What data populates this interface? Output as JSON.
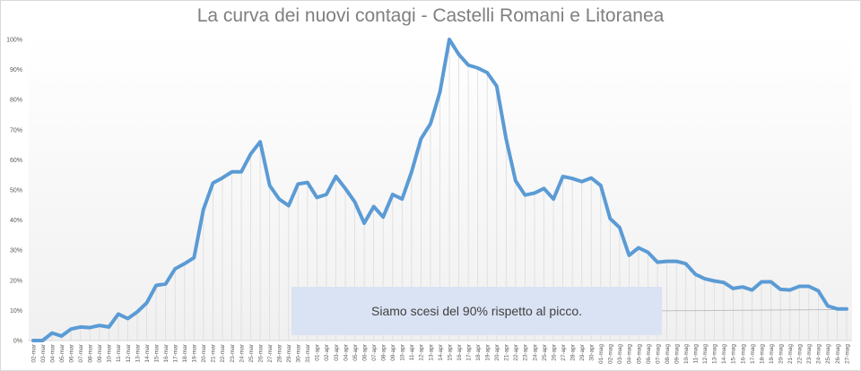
{
  "chart_data": {
    "type": "line",
    "title": "La curva dei nuovi contagi - Castelli Romani e Litoranea",
    "xlabel": "",
    "ylabel": "",
    "ylim": [
      0,
      100
    ],
    "yticks": [
      "0%",
      "10%",
      "20%",
      "30%",
      "40%",
      "50%",
      "60%",
      "70%",
      "80%",
      "90%",
      "100%"
    ],
    "grid": "vertical lines per category",
    "legend": "none",
    "line_color": "#5b9bd5",
    "categories": [
      "02-mar",
      "03-mar",
      "04-mar",
      "05-mar",
      "06-mar",
      "07-mar",
      "08-mar",
      "09-mar",
      "10-mar",
      "11-mar",
      "12-mar",
      "13-mar",
      "14-mar",
      "15-mar",
      "16-mar",
      "17-mar",
      "18-mar",
      "19-mar",
      "20-mar",
      "21-mar",
      "22-mar",
      "23-mar",
      "24-mar",
      "25-mar",
      "26-mar",
      "27-mar",
      "28-mar",
      "29-mar",
      "30-mar",
      "31-mar",
      "01-apr",
      "02-apr",
      "03-apr",
      "04-apr",
      "05-apr",
      "06-apr",
      "07-apr",
      "08-apr",
      "09-apr",
      "10-apr",
      "11-apr",
      "12-apr",
      "13-apr",
      "14-apr",
      "15-apr",
      "16-apr",
      "17-apr",
      "18-apr",
      "19-apr",
      "20-apr",
      "21-apr",
      "22-apr",
      "23-apr",
      "24-apr",
      "25-apr",
      "26-apr",
      "27-apr",
      "28-apr",
      "29-apr",
      "30-apr",
      "01-mag",
      "02-mag",
      "03-mag",
      "04-mag",
      "05-mag",
      "06-mag",
      "07-mag",
      "08-mag",
      "09-mag",
      "10-mag",
      "11-mag",
      "12-mag",
      "13-mag",
      "14-mag",
      "15-mag",
      "16-mag",
      "17-mag",
      "18-mag",
      "19-mag",
      "20-mag",
      "21-mag",
      "22-mag",
      "23-mag",
      "24-mag",
      "25-mag",
      "26-mag",
      "27-mag"
    ],
    "values": [
      0,
      0,
      2.5,
      1.5,
      3.8,
      4.5,
      4.3,
      5,
      4.5,
      8.8,
      7.3,
      9.5,
      12.5,
      18.3,
      18.8,
      23.8,
      25.5,
      27.5,
      43.5,
      52.3,
      54,
      56,
      56,
      62,
      66,
      51.5,
      47,
      44.8,
      52,
      52.5,
      47.5,
      48.5,
      54.5,
      50.5,
      46,
      39,
      44.5,
      41,
      48.5,
      47,
      56,
      67,
      72,
      82.5,
      100,
      95,
      91.5,
      90.5,
      89,
      84.5,
      67,
      53,
      48.3,
      49,
      50.5,
      47,
      54.5,
      53.8,
      52.8,
      54,
      51.5,
      40.5,
      37.5,
      28.3,
      30.8,
      29.3,
      26,
      26.3,
      26.3,
      25.5,
      22,
      20.5,
      19.8,
      19.3,
      17.3,
      17.8,
      16.8,
      19.5,
      19.5,
      17,
      16.8,
      18,
      18,
      16.5,
      11.5,
      10.5,
      10.5
    ],
    "annotation": "Siamo scesi del 90% rispetto al picco.",
    "reference_line": {
      "value": 10,
      "from": "07-mag",
      "to": "27-mag"
    }
  }
}
